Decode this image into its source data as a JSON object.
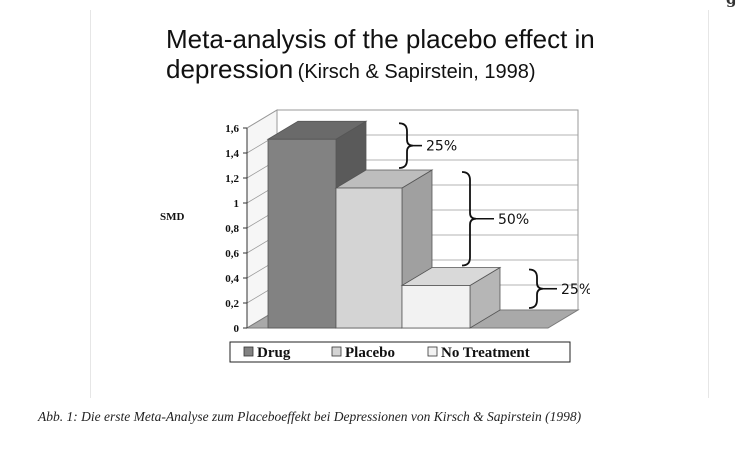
{
  "top_fragment": "g",
  "title": {
    "line1": "Meta-analysis of the placebo effect in",
    "line2": "depression",
    "citation": "(Kirsch & Sapirstein, 1998)"
  },
  "chart_data": {
    "type": "bar",
    "title": "Meta-analysis of the placebo effect in depression (Kirsch & Sapirstein, 1998)",
    "xlabel": "",
    "ylabel": "SMD",
    "ylim": [
      0,
      1.6
    ],
    "yticks": [
      "0",
      "0,2",
      "0,4",
      "0,6",
      "0,8",
      "1",
      "1,2",
      "1,4",
      "1,6"
    ],
    "grid": true,
    "three_d": true,
    "categories": [
      "Drug",
      "Placebo",
      "No Treatment"
    ],
    "values": [
      1.51,
      1.12,
      0.34
    ],
    "colors": [
      "#828282",
      "#d4d4d4",
      "#f2f2f2"
    ],
    "legend": {
      "placement": "bottom",
      "entries": [
        "Drug",
        "Placebo",
        "No Treatment"
      ]
    },
    "annotations": [
      "25%",
      "50%",
      "25%"
    ]
  },
  "caption": "Abb. 1: Die erste Meta-Analyse zum Placeboeffekt bei Depressionen von Kirsch & Sapirstein (1998)"
}
